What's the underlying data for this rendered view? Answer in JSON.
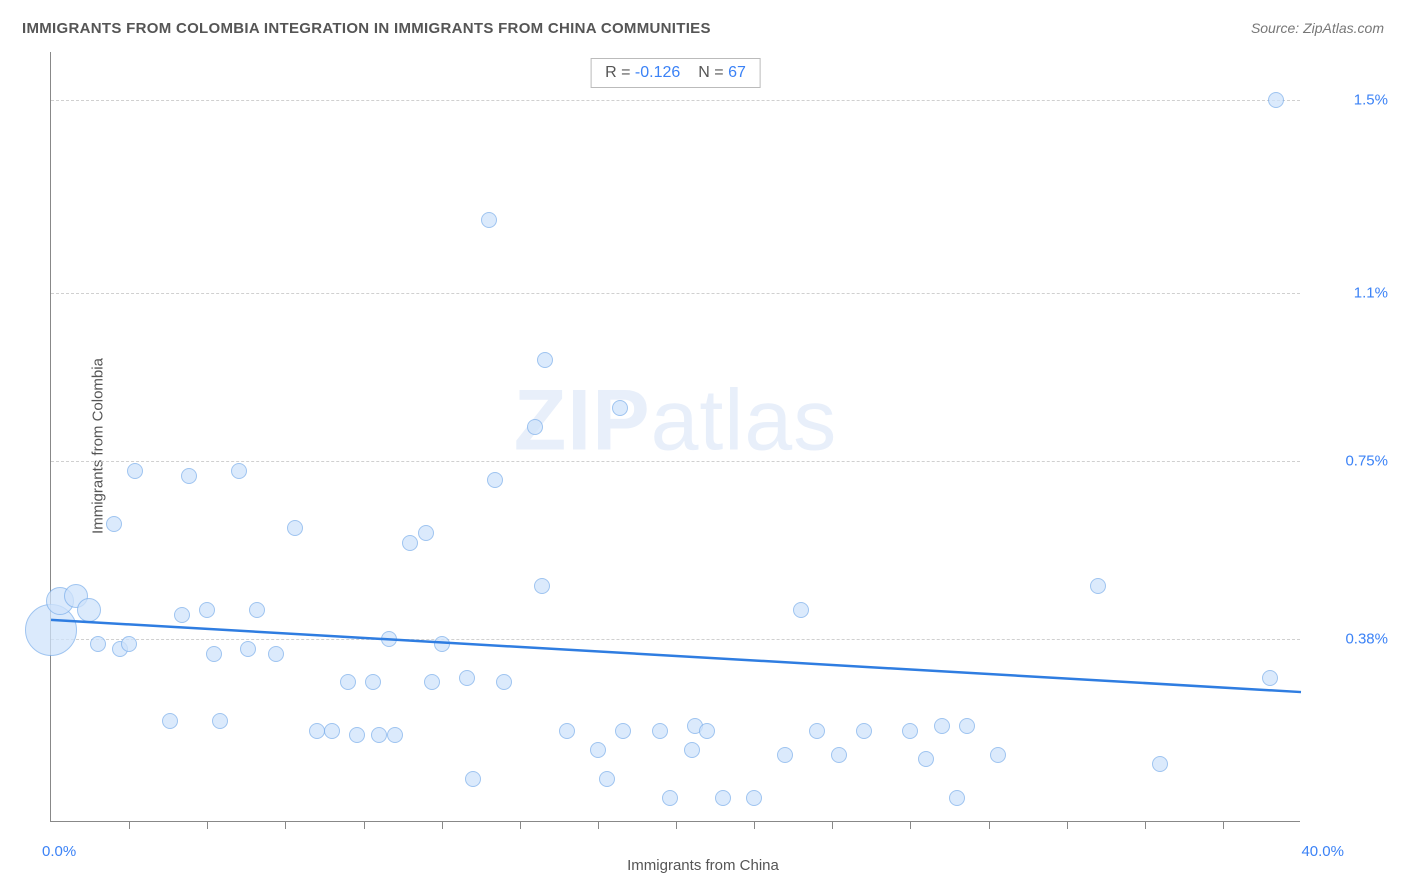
{
  "title": "IMMIGRANTS FROM COLOMBIA INTEGRATION IN IMMIGRANTS FROM CHINA COMMUNITIES",
  "source": "Source: ZipAtlas.com",
  "watermark_bold": "ZIP",
  "watermark_light": "atlas",
  "stats": {
    "r_label": "R =",
    "r_value": "-0.126",
    "n_label": "N =",
    "n_value": "67"
  },
  "chart": {
    "type": "scatter",
    "x_axis_label": "Immigrants from China",
    "y_axis_label": "Immigrants from Colombia",
    "x_min_label": "0.0%",
    "x_max_label": "40.0%",
    "xlim": [
      0,
      40
    ],
    "ylim": [
      0,
      1.6
    ],
    "y_ticks": [
      {
        "value": 0.38,
        "label": "0.38%"
      },
      {
        "value": 0.75,
        "label": "0.75%"
      },
      {
        "value": 1.1,
        "label": "1.1%"
      },
      {
        "value": 1.5,
        "label": "1.5%"
      }
    ],
    "x_tick_positions": [
      2.5,
      5,
      7.5,
      10,
      12.5,
      15,
      17.5,
      20,
      22.5,
      25,
      27.5,
      30,
      32.5,
      35,
      37.5
    ],
    "background_color": "#ffffff",
    "grid_color": "#d0d0d0",
    "axis_color": "#888888",
    "bubble_fill": "#cfe3fb",
    "bubble_stroke": "#7fb1ec",
    "bubble_fill_opacity": 0.75,
    "default_bubble_radius": 8,
    "trend_line": {
      "color": "#2f7de1",
      "width": 2.5,
      "y_at_x0": 0.42,
      "y_at_xmax": 0.27
    },
    "points": [
      {
        "x": 0.0,
        "y": 0.4,
        "r": 26
      },
      {
        "x": 0.3,
        "y": 0.46,
        "r": 14
      },
      {
        "x": 0.8,
        "y": 0.47,
        "r": 12
      },
      {
        "x": 1.2,
        "y": 0.44,
        "r": 12
      },
      {
        "x": 1.5,
        "y": 0.37
      },
      {
        "x": 2.0,
        "y": 0.62
      },
      {
        "x": 2.2,
        "y": 0.36
      },
      {
        "x": 2.5,
        "y": 0.37
      },
      {
        "x": 2.7,
        "y": 0.73
      },
      {
        "x": 3.8,
        "y": 0.21
      },
      {
        "x": 4.2,
        "y": 0.43
      },
      {
        "x": 4.4,
        "y": 0.72
      },
      {
        "x": 5.0,
        "y": 0.44
      },
      {
        "x": 5.2,
        "y": 0.35
      },
      {
        "x": 5.4,
        "y": 0.21
      },
      {
        "x": 6.0,
        "y": 0.73
      },
      {
        "x": 6.3,
        "y": 0.36
      },
      {
        "x": 6.6,
        "y": 0.44
      },
      {
        "x": 7.2,
        "y": 0.35
      },
      {
        "x": 7.8,
        "y": 0.61
      },
      {
        "x": 8.5,
        "y": 0.19
      },
      {
        "x": 9.0,
        "y": 0.19
      },
      {
        "x": 9.5,
        "y": 0.29
      },
      {
        "x": 9.8,
        "y": 0.18
      },
      {
        "x": 10.3,
        "y": 0.29
      },
      {
        "x": 10.5,
        "y": 0.18
      },
      {
        "x": 10.8,
        "y": 0.38
      },
      {
        "x": 11.0,
        "y": 0.18
      },
      {
        "x": 11.5,
        "y": 0.58
      },
      {
        "x": 12.0,
        "y": 0.6
      },
      {
        "x": 12.2,
        "y": 0.29
      },
      {
        "x": 12.5,
        "y": 0.37
      },
      {
        "x": 13.3,
        "y": 0.3
      },
      {
        "x": 13.5,
        "y": 0.09
      },
      {
        "x": 14.0,
        "y": 1.25
      },
      {
        "x": 14.2,
        "y": 0.71
      },
      {
        "x": 14.5,
        "y": 0.29
      },
      {
        "x": 15.5,
        "y": 0.82
      },
      {
        "x": 15.7,
        "y": 0.49
      },
      {
        "x": 15.8,
        "y": 0.96
      },
      {
        "x": 16.5,
        "y": 0.19
      },
      {
        "x": 17.5,
        "y": 0.15
      },
      {
        "x": 17.8,
        "y": 0.09
      },
      {
        "x": 18.2,
        "y": 0.86
      },
      {
        "x": 18.3,
        "y": 0.19
      },
      {
        "x": 19.5,
        "y": 0.19
      },
      {
        "x": 19.8,
        "y": 0.05
      },
      {
        "x": 20.5,
        "y": 0.15
      },
      {
        "x": 20.6,
        "y": 0.2
      },
      {
        "x": 21.0,
        "y": 0.19
      },
      {
        "x": 21.5,
        "y": 0.05
      },
      {
        "x": 22.5,
        "y": 0.05
      },
      {
        "x": 23.5,
        "y": 0.14
      },
      {
        "x": 24.0,
        "y": 0.44
      },
      {
        "x": 24.5,
        "y": 0.19
      },
      {
        "x": 25.2,
        "y": 0.14
      },
      {
        "x": 26.0,
        "y": 0.19
      },
      {
        "x": 27.5,
        "y": 0.19
      },
      {
        "x": 28.0,
        "y": 0.13
      },
      {
        "x": 28.5,
        "y": 0.2
      },
      {
        "x": 29.0,
        "y": 0.05
      },
      {
        "x": 29.3,
        "y": 0.2
      },
      {
        "x": 30.3,
        "y": 0.14
      },
      {
        "x": 33.5,
        "y": 0.49
      },
      {
        "x": 35.5,
        "y": 0.12
      },
      {
        "x": 39.2,
        "y": 1.5
      },
      {
        "x": 39.0,
        "y": 0.3
      }
    ]
  }
}
